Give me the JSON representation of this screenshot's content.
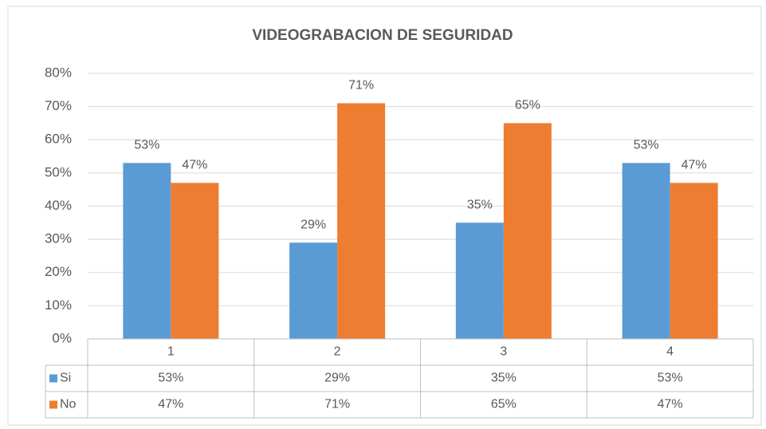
{
  "chart_data": {
    "type": "bar",
    "title": "VIDEOGRABACION DE SEGURIDAD",
    "categories": [
      "1",
      "2",
      "3",
      "4"
    ],
    "series": [
      {
        "name": "Si",
        "color": "#5b9bd5",
        "values": [
          53,
          29,
          35,
          53
        ],
        "value_labels": [
          "53%",
          "29%",
          "35%",
          "53%"
        ]
      },
      {
        "name": "No",
        "color": "#ed7d31",
        "values": [
          47,
          71,
          65,
          47
        ],
        "value_labels": [
          "47%",
          "71%",
          "65%",
          "47%"
        ]
      }
    ],
    "ylim": [
      0,
      80
    ],
    "yticks": [
      {
        "value": 0,
        "label": "0%"
      },
      {
        "value": 10,
        "label": "10%"
      },
      {
        "value": 20,
        "label": "20%"
      },
      {
        "value": 30,
        "label": "30%"
      },
      {
        "value": 40,
        "label": "40%"
      },
      {
        "value": 50,
        "label": "50%"
      },
      {
        "value": 60,
        "label": "60%"
      },
      {
        "value": 70,
        "label": "70%"
      },
      {
        "value": 80,
        "label": "80%"
      }
    ],
    "grid": true,
    "data_table": true
  }
}
